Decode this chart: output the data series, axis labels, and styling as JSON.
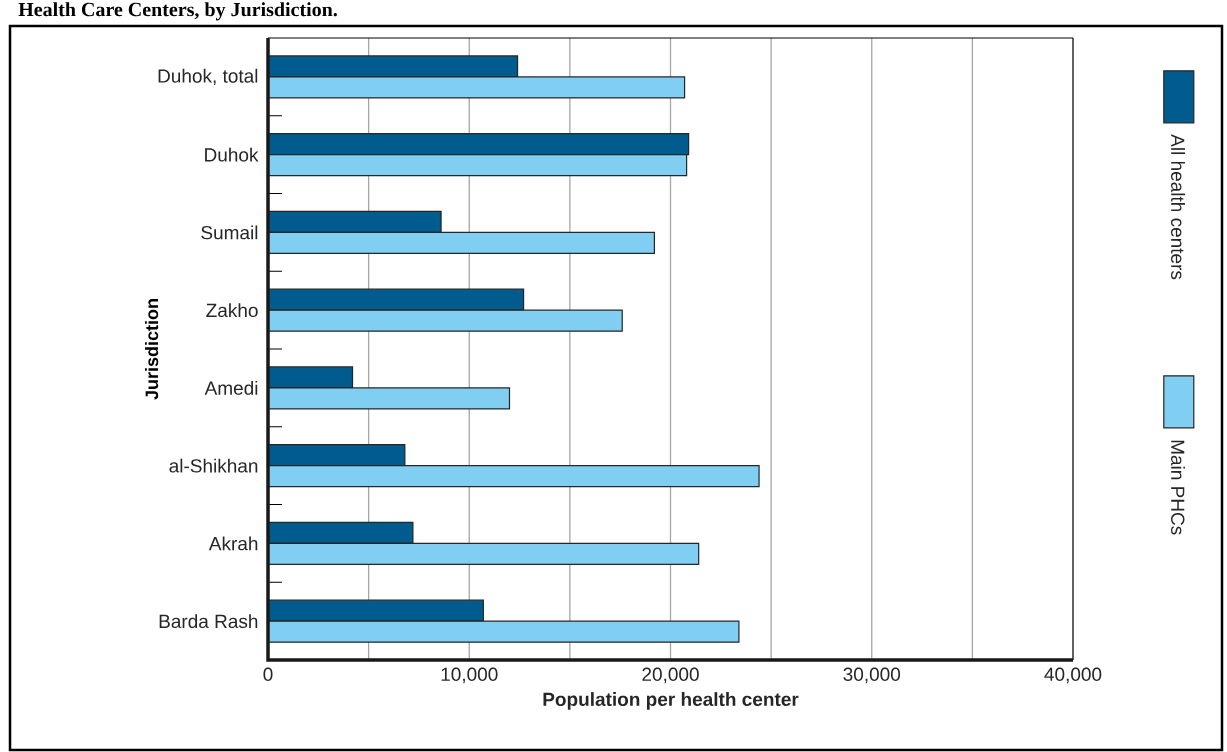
{
  "chart_data": {
    "type": "bar",
    "orientation": "horizontal",
    "title": "Health Care Centers, by Jurisdiction.",
    "xlabel": "Population per health center",
    "ylabel": "Jurisdiction",
    "categories": [
      "Duhok, total",
      "Duhok",
      "Sumail",
      "Zakho",
      "Amedi",
      "al-Shikhan",
      "Akrah",
      "Barda Rash"
    ],
    "series": [
      {
        "name": "All health centers",
        "color": "#005b8f",
        "values": [
          12400,
          20900,
          8600,
          12700,
          4200,
          6800,
          7200,
          10700
        ]
      },
      {
        "name": "Main PHCs",
        "color": "#80cff3",
        "values": [
          20700,
          20800,
          19200,
          17600,
          12000,
          24400,
          21400,
          23400
        ]
      }
    ],
    "xlim": [
      0,
      40000
    ],
    "xticks": [
      0,
      {
        "value": 5000,
        "label": null
      },
      {
        "value": 10000,
        "label": "10,000"
      },
      {
        "value": 15000,
        "label": null
      },
      {
        "value": 20000,
        "label": "20,000"
      },
      {
        "value": 25000,
        "label": null
      },
      {
        "value": 30000,
        "label": "30,000"
      },
      {
        "value": 35000,
        "label": null
      },
      {
        "value": 40000,
        "label": "40,000"
      }
    ],
    "grid": "x",
    "legend": "right"
  }
}
